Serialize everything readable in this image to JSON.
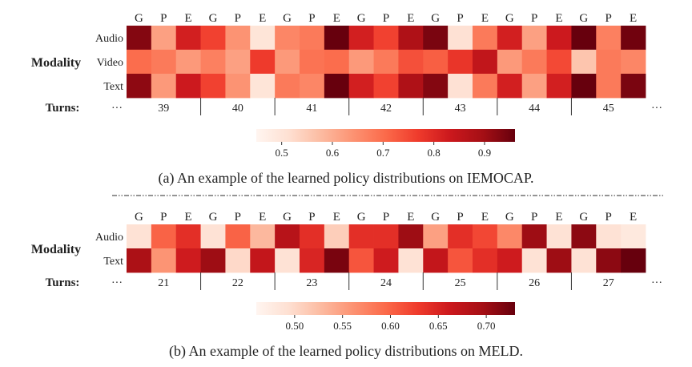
{
  "chart_data": [
    {
      "type": "heatmap",
      "title": "",
      "caption": "(a) An example of the learned policy distributions on IEMOCAP.",
      "ylabel": "Modality",
      "xlabel": "Turns:",
      "column_labels": [
        "G",
        "P",
        "E",
        "G",
        "P",
        "E",
        "G",
        "P",
        "E",
        "G",
        "P",
        "E",
        "G",
        "P",
        "E",
        "G",
        "P",
        "E",
        "G",
        "P",
        "E"
      ],
      "row_labels": [
        "Audio",
        "Video",
        "Text"
      ],
      "turns": [
        "39",
        "40",
        "41",
        "42",
        "43",
        "44",
        "45"
      ],
      "ellipsis": "···",
      "values": [
        [
          0.93,
          0.62,
          0.82,
          0.76,
          0.64,
          0.5,
          0.66,
          0.68,
          0.97,
          0.82,
          0.76,
          0.88,
          0.94,
          0.51,
          0.68,
          0.82,
          0.62,
          0.83,
          0.97,
          0.67,
          0.95
        ],
        [
          0.7,
          0.68,
          0.63,
          0.67,
          0.62,
          0.77,
          0.63,
          0.69,
          0.7,
          0.63,
          0.68,
          0.74,
          0.72,
          0.78,
          0.85,
          0.63,
          0.68,
          0.75,
          0.56,
          0.68,
          0.66
        ],
        [
          0.92,
          0.63,
          0.83,
          0.76,
          0.64,
          0.5,
          0.68,
          0.66,
          0.96,
          0.82,
          0.76,
          0.88,
          0.93,
          0.51,
          0.68,
          0.82,
          0.62,
          0.82,
          0.97,
          0.68,
          0.94
        ]
      ],
      "colorbar": {
        "min": 0.45,
        "max": 0.96,
        "ticks": [
          "0.5",
          "0.6",
          "0.7",
          "0.8",
          "0.9"
        ],
        "tick_values": [
          0.5,
          0.6,
          0.7,
          0.8,
          0.9
        ]
      }
    },
    {
      "type": "heatmap",
      "title": "",
      "caption": "(b) An example of the learned policy distributions on MELD.",
      "ylabel": "Modality",
      "xlabel": "Turns:",
      "column_labels": [
        "G",
        "P",
        "E",
        "G",
        "P",
        "E",
        "G",
        "P",
        "E",
        "G",
        "P",
        "E",
        "G",
        "P",
        "E",
        "G",
        "P",
        "E",
        "G",
        "P",
        "E"
      ],
      "row_labels": [
        "Audio",
        "Text"
      ],
      "turns": [
        "21",
        "22",
        "23",
        "24",
        "25",
        "26",
        "27"
      ],
      "ellipsis": "···",
      "values": [
        [
          0.49,
          0.6,
          0.64,
          0.49,
          0.6,
          0.53,
          0.68,
          0.64,
          0.51,
          0.64,
          0.64,
          0.7,
          0.55,
          0.64,
          0.62,
          0.57,
          0.7,
          0.49,
          0.71,
          0.49,
          0.48
        ],
        [
          0.69,
          0.56,
          0.66,
          0.7,
          0.5,
          0.67,
          0.49,
          0.65,
          0.72,
          0.61,
          0.66,
          0.49,
          0.67,
          0.61,
          0.64,
          0.66,
          0.49,
          0.7,
          0.49,
          0.71,
          0.73
        ]
      ],
      "colorbar": {
        "min": 0.46,
        "max": 0.73,
        "ticks": [
          "0.50",
          "0.55",
          "0.60",
          "0.65",
          "0.70"
        ],
        "tick_values": [
          0.5,
          0.55,
          0.6,
          0.65,
          0.7
        ]
      }
    }
  ]
}
